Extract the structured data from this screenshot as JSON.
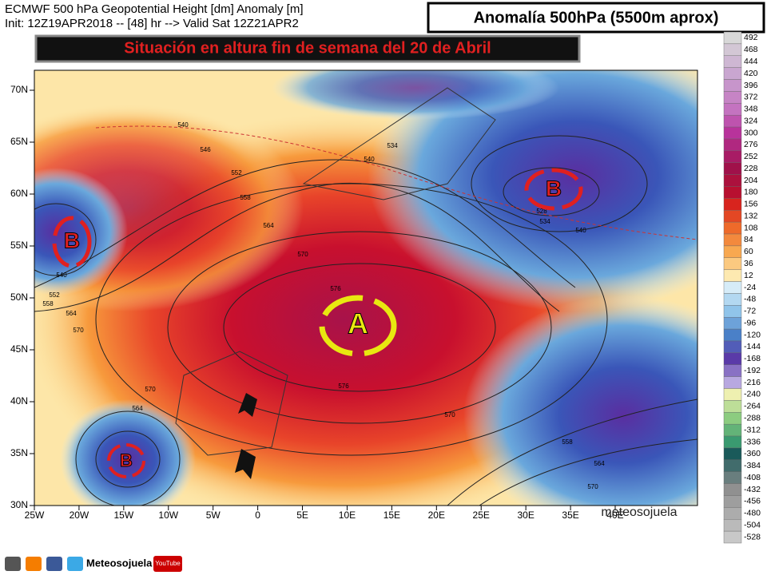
{
  "header": {
    "line1": "ECMWF 500 hPa Geopotential Height [dm] Anomaly [m]",
    "line2": "Init: 12Z19APR2018 -- [48] hr --> Valid Sat 12Z21APR2",
    "title": "Anomalía 500hPa (5500m aprox)",
    "subtitle": "Situación en altura fin de semana del 20 de Abril"
  },
  "map": {
    "lat_ticks": [
      {
        "value": 70,
        "label": "70N"
      },
      {
        "value": 65,
        "label": "65N"
      },
      {
        "value": 60,
        "label": "60N"
      },
      {
        "value": 55,
        "label": "55N"
      },
      {
        "value": 50,
        "label": "50N"
      },
      {
        "value": 45,
        "label": "45N"
      },
      {
        "value": 40,
        "label": "40N"
      },
      {
        "value": 35,
        "label": "35N"
      },
      {
        "value": 30,
        "label": "30N"
      }
    ],
    "lon_ticks": [
      {
        "value": -25,
        "label": "25W"
      },
      {
        "value": -20,
        "label": "20W"
      },
      {
        "value": -15,
        "label": "15W"
      },
      {
        "value": -10,
        "label": "10W"
      },
      {
        "value": -5,
        "label": "5W"
      },
      {
        "value": 0,
        "label": "0"
      },
      {
        "value": 5,
        "label": "5E"
      },
      {
        "value": 10,
        "label": "10E"
      },
      {
        "value": 15,
        "label": "15E"
      },
      {
        "value": 20,
        "label": "20E"
      },
      {
        "value": 25,
        "label": "25E"
      },
      {
        "value": 30,
        "label": "30E"
      },
      {
        "value": 35,
        "label": "35E"
      },
      {
        "value": 40,
        "label": "40E"
      }
    ],
    "contour_labels": [
      "540",
      "546",
      "552",
      "558",
      "564",
      "570",
      "576",
      "576",
      "570",
      "564",
      "540",
      "552",
      "558",
      "564",
      "570",
      "534",
      "540",
      "534",
      "540",
      "570",
      "558",
      "564",
      "570",
      "528"
    ],
    "high": "A",
    "lows": [
      "B",
      "B",
      "B"
    ],
    "watermark": "meteosojuela"
  },
  "colorbar": {
    "labels": [
      492,
      468,
      444,
      420,
      396,
      372,
      348,
      324,
      300,
      276,
      252,
      228,
      204,
      180,
      156,
      132,
      108,
      84,
      60,
      36,
      12,
      -24,
      -48,
      -72,
      -96,
      -120,
      -144,
      -168,
      -192,
      -216,
      -240,
      -264,
      -288,
      -312,
      -336,
      -360,
      -384,
      -408,
      -432,
      -456,
      -480,
      -504,
      -528
    ]
  },
  "footer": {
    "brand": "Meteosojuela",
    "video": "YouTube"
  }
}
